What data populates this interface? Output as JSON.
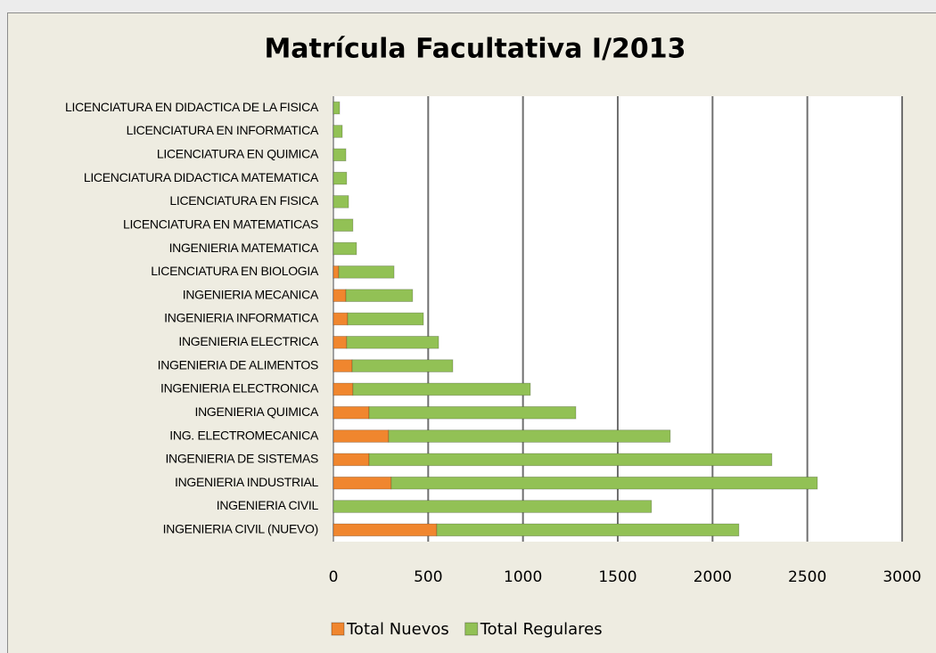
{
  "chart_data": {
    "type": "stacked_hbar",
    "title": "Matrícula Facultativa I/2013",
    "categories": [
      "LICENCIATURA EN DIDACTICA DE LA FISICA",
      "LICENCIATURA EN INFORMATICA",
      "LICENCIATURA EN QUIMICA",
      "LICENCIATURA DIDACTICA MATEMATICA",
      "LICENCIATURA EN FISICA",
      "LICENCIATURA EN MATEMATICAS",
      "INGENIERIA MATEMATICA",
      "LICENCIATURA EN BIOLOGIA",
      "INGENIERIA MECANICA",
      "INGENIERIA INFORMATICA",
      "INGENIERIA ELECTRICA",
      "INGENIERIA DE ALIMENTOS",
      "INGENIERIA ELECTRONICA",
      "INGENIERIA QUIMICA",
      "ING. ELECTROMECANICA",
      "INGENIERIA DE SISTEMAS",
      "INGENIERIA INDUSTRIAL",
      "INGENIERIA CIVIL",
      "INGENIERIA CIVIL (NUEVO)"
    ],
    "series": [
      {
        "name": "Total Nuevos",
        "color": "#f0862e",
        "values": [
          0,
          0,
          0,
          0,
          0,
          0,
          0,
          28,
          66,
          75,
          70,
          99,
          103,
          188,
          291,
          188,
          305,
          0,
          545
        ]
      },
      {
        "name": "Total Regulares",
        "color": "#92c155",
        "values": [
          33,
          47,
          66,
          70,
          80,
          103,
          122,
          292,
          352,
          400,
          485,
          531,
          936,
          1091,
          1486,
          2125,
          2248,
          1678,
          1594
        ]
      }
    ],
    "xlim": [
      0,
      3000
    ],
    "xticks": [
      0,
      500,
      1000,
      1500,
      2000,
      2500,
      3000
    ],
    "grid": true
  }
}
